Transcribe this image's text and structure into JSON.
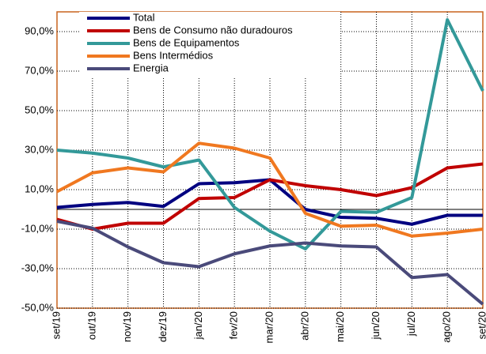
{
  "chart_data": {
    "type": "line",
    "categories": [
      "set/19",
      "out/19",
      "nov/19",
      "dez/19",
      "jan/20",
      "fev/20",
      "mar/20",
      "abr/20",
      "mai/20",
      "jun/20",
      "jul/20",
      "ago/20",
      "set/20"
    ],
    "series": [
      {
        "name": "Total",
        "color": "#000080",
        "values": [
          1,
          2.5,
          3.5,
          1.5,
          13,
          13.5,
          15,
          0,
          -4,
          -4.5,
          -7.5,
          -3,
          -3
        ]
      },
      {
        "name": "Bens de Consumo não duradouros",
        "color": "#c00000",
        "values": [
          -5,
          -10,
          -7,
          -7,
          5.5,
          6,
          15,
          12,
          10,
          7,
          11,
          21,
          23
        ]
      },
      {
        "name": "Bens de Equipamentos",
        "color": "#339999",
        "values": [
          30,
          28.5,
          26,
          21.5,
          25,
          1,
          -11,
          -20,
          -1,
          -1.5,
          6,
          96,
          60
        ]
      },
      {
        "name": "Bens Intermédios",
        "color": "#f07820",
        "values": [
          9,
          18.5,
          21,
          19,
          33.5,
          31,
          26,
          -2,
          -8.5,
          -8,
          -13.5,
          -12,
          -10
        ]
      },
      {
        "name": "Energia",
        "color": "#4a4a7a",
        "values": [
          -6,
          -9.5,
          -19,
          -27,
          -29,
          -22.5,
          -18.5,
          -17,
          -18.5,
          -19,
          -34.5,
          -33,
          -48
        ]
      }
    ],
    "ylim": [
      -50,
      100
    ],
    "yticks": [
      {
        "value": -50,
        "label": "-50,0%"
      },
      {
        "value": -30,
        "label": "-30,0%"
      },
      {
        "value": -10,
        "label": "-10,0%"
      },
      {
        "value": 10,
        "label": "10,0%"
      },
      {
        "value": 30,
        "label": "30,0%"
      },
      {
        "value": 50,
        "label": "50,0%"
      },
      {
        "value": 70,
        "label": "70,0%"
      },
      {
        "value": 90,
        "label": "90,0%"
      }
    ],
    "grid": true,
    "legend": "top-left"
  }
}
